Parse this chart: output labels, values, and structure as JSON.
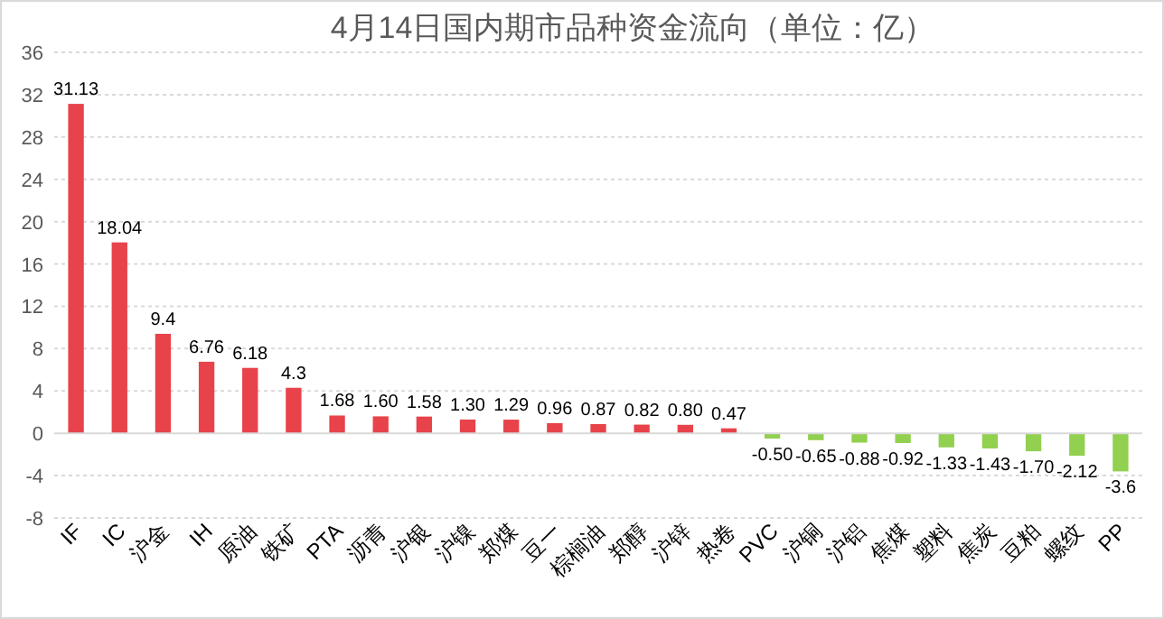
{
  "chart_data": {
    "type": "bar",
    "title": "4月14日国内期市品种资金流向（单位：亿）",
    "categories": [
      "IF",
      "IC",
      "沪金",
      "IH",
      "原油",
      "铁矿",
      "PTA",
      "沥青",
      "沪银",
      "沪镍",
      "郑煤",
      "豆一",
      "棕榈油",
      "郑醇",
      "沪锌",
      "热卷",
      "PVC",
      "沪铜",
      "沪铝",
      "焦煤",
      "塑料",
      "焦炭",
      "豆粕",
      "螺纹",
      "PP"
    ],
    "values": [
      31.13,
      18.04,
      9.4,
      6.76,
      6.18,
      4.3,
      1.68,
      1.6,
      1.58,
      1.3,
      1.29,
      0.96,
      0.87,
      0.82,
      0.8,
      0.47,
      -0.5,
      -0.65,
      -0.88,
      -0.92,
      -1.33,
      -1.43,
      -1.7,
      -2.12,
      -3.6
    ],
    "value_labels": [
      "31.13",
      "18.04",
      "9.4",
      "6.76",
      "6.18",
      "4.3",
      "1.68",
      "1.60",
      "1.58",
      "1.30",
      "1.29",
      "0.96",
      "0.87",
      "0.82",
      "0.80",
      "0.47",
      "-0.50",
      "-0.65",
      "-0.88",
      "-0.92",
      "-1.33",
      "-1.43",
      "-1.70",
      "-2.12",
      "-3.6"
    ],
    "colors": [
      "#e8434a",
      "#e8434a",
      "#e8434a",
      "#e8434a",
      "#e8434a",
      "#e8434a",
      "#e8434a",
      "#e8434a",
      "#e8434a",
      "#e8434a",
      "#e8434a",
      "#e8434a",
      "#e8434a",
      "#e8434a",
      "#e8434a",
      "#e8434a",
      "#92d050",
      "#92d050",
      "#92d050",
      "#92d050",
      "#92d050",
      "#92d050",
      "#92d050",
      "#92d050",
      "#92d050"
    ],
    "ylim": [
      -8,
      36
    ],
    "yticks": [
      -8,
      -4,
      0,
      4,
      8,
      12,
      16,
      20,
      24,
      28,
      32,
      36
    ],
    "grid": "y"
  }
}
